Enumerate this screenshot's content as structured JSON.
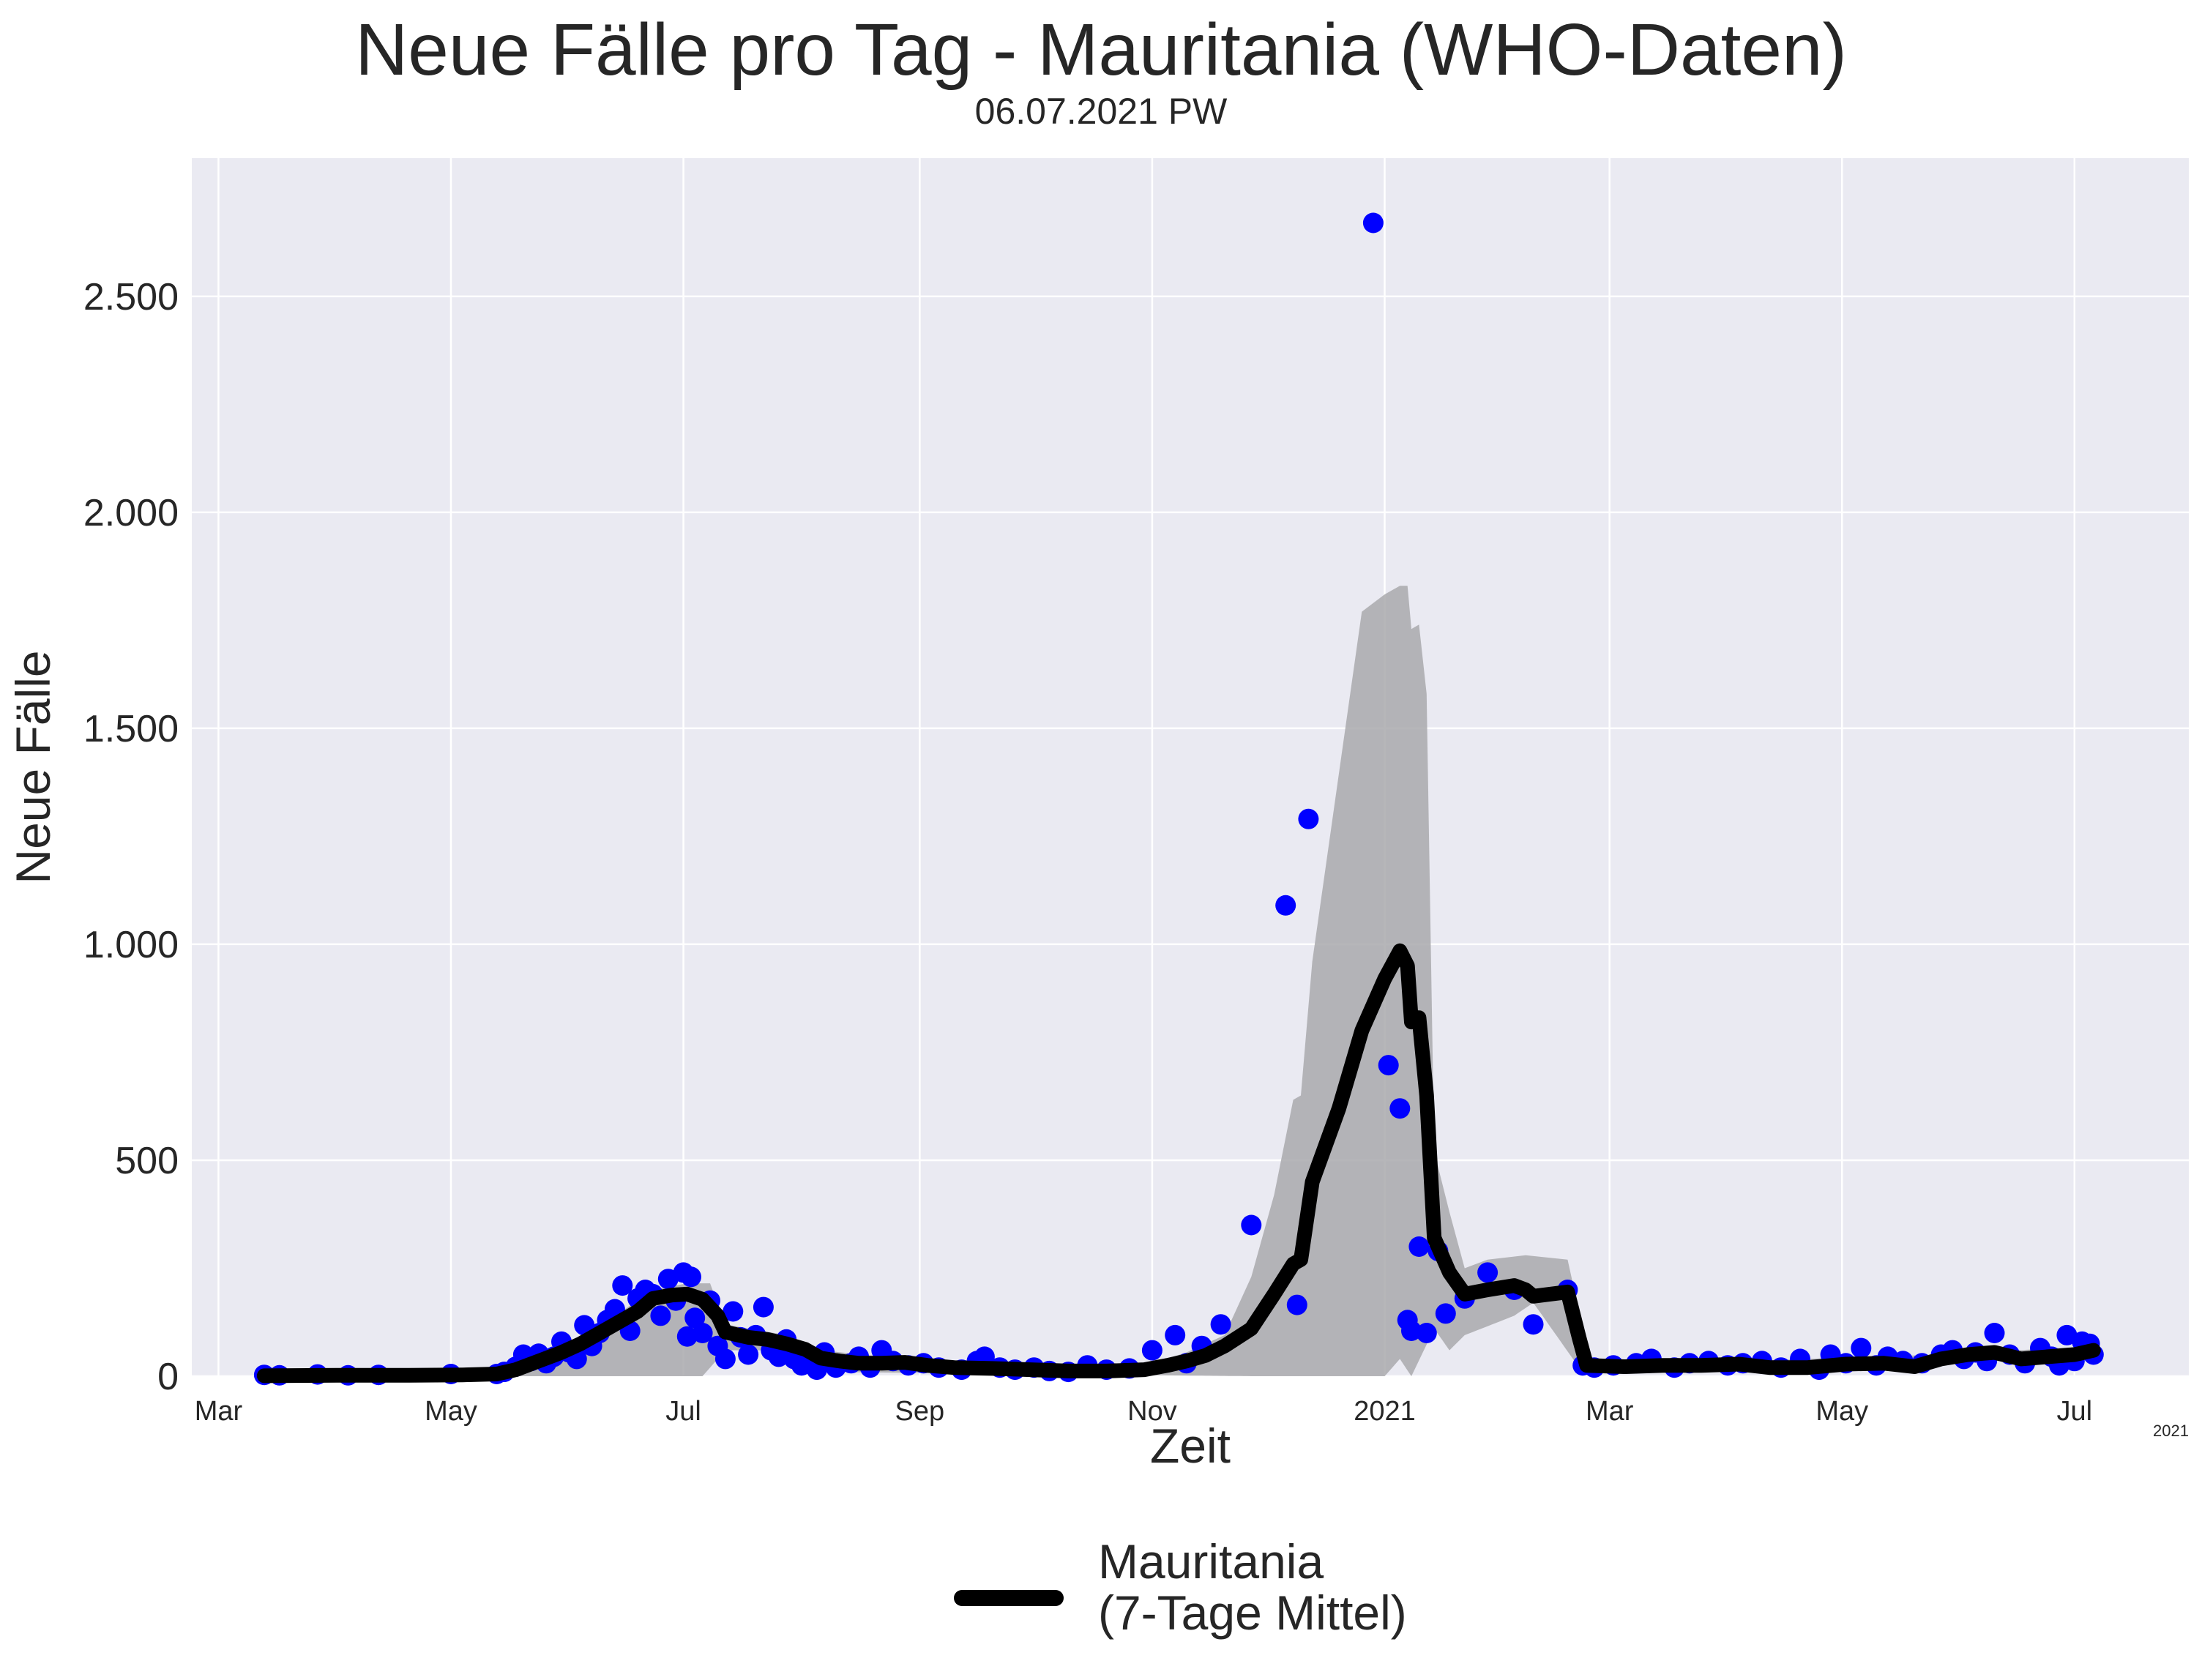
{
  "title": "Neue Fälle pro Tag - Mauritania (WHO-Daten)",
  "subtitle": "06.07.2021 PW",
  "legend": {
    "label_line1": "Mauritania",
    "label_line2": "(7-Tage Mittel)",
    "placement": "bottom-center"
  },
  "colors": {
    "background": "#eaeaf2",
    "grid": "#ffffff",
    "points": "#0000ff",
    "line": "#000000",
    "band": "#a9a9ad"
  },
  "chart_data": {
    "type": "line",
    "title": "Neue Fälle pro Tag - Mauritania (WHO-Daten)",
    "subtitle": "06.07.2021 PW",
    "xlabel": "Zeit",
    "ylabel": "Neue Fälle",
    "xlim": [
      "2020-02-23",
      "2021-07-31"
    ],
    "ylim": [
      0,
      2820
    ],
    "grid": true,
    "x_ticks": [
      {
        "date": "2020-03-01",
        "label": "Mar"
      },
      {
        "date": "2020-05-01",
        "label": "May"
      },
      {
        "date": "2020-07-01",
        "label": "Jul"
      },
      {
        "date": "2020-09-01",
        "label": "Sep"
      },
      {
        "date": "2020-11-01",
        "label": "Nov"
      },
      {
        "date": "2021-01-01",
        "label": "2021"
      },
      {
        "date": "2021-03-01",
        "label": "Mar"
      },
      {
        "date": "2021-05-01",
        "label": "May"
      },
      {
        "date": "2021-07-01",
        "label": "Jul"
      }
    ],
    "x_offset_label": "2021",
    "y_ticks": [
      {
        "value": 0,
        "label": "0"
      },
      {
        "value": 500,
        "label": "500"
      },
      {
        "value": 1000,
        "label": "1.000"
      },
      {
        "value": 1500,
        "label": "1.500"
      },
      {
        "value": 2000,
        "label": "2.000"
      },
      {
        "value": 2500,
        "label": "2.500"
      }
    ],
    "series": [
      {
        "name": "Mauritania (7-Tage Mittel)",
        "kind": "line",
        "points": [
          [
            "2020-03-13",
            1
          ],
          [
            "2020-04-01",
            2
          ],
          [
            "2020-04-20",
            2
          ],
          [
            "2020-05-04",
            3
          ],
          [
            "2020-05-13",
            5
          ],
          [
            "2020-05-18",
            15
          ],
          [
            "2020-05-24",
            35
          ],
          [
            "2020-05-30",
            55
          ],
          [
            "2020-06-04",
            75
          ],
          [
            "2020-06-09",
            100
          ],
          [
            "2020-06-14",
            125
          ],
          [
            "2020-06-19",
            150
          ],
          [
            "2020-06-23",
            180
          ],
          [
            "2020-06-28",
            188
          ],
          [
            "2020-07-02",
            190
          ],
          [
            "2020-07-06",
            178
          ],
          [
            "2020-07-10",
            140
          ],
          [
            "2020-07-12",
            102
          ],
          [
            "2020-07-18",
            90
          ],
          [
            "2020-07-23",
            85
          ],
          [
            "2020-07-28",
            75
          ],
          [
            "2020-08-02",
            62
          ],
          [
            "2020-08-06",
            42
          ],
          [
            "2020-08-11",
            35
          ],
          [
            "2020-08-16",
            30
          ],
          [
            "2020-08-22",
            30
          ],
          [
            "2020-08-28",
            32
          ],
          [
            "2020-09-03",
            25
          ],
          [
            "2020-09-10",
            20
          ],
          [
            "2020-09-20",
            18
          ],
          [
            "2020-09-30",
            15
          ],
          [
            "2020-10-10",
            12
          ],
          [
            "2020-10-20",
            12
          ],
          [
            "2020-10-30",
            15
          ],
          [
            "2020-11-05",
            25
          ],
          [
            "2020-11-10",
            35
          ],
          [
            "2020-11-15",
            48
          ],
          [
            "2020-11-20",
            70
          ],
          [
            "2020-11-27",
            110
          ],
          [
            "2020-12-03",
            190
          ],
          [
            "2020-12-08",
            260
          ],
          [
            "2020-12-10",
            270
          ],
          [
            "2020-12-13",
            450
          ],
          [
            "2020-12-20",
            620
          ],
          [
            "2020-12-26",
            800
          ],
          [
            "2021-01-01",
            920
          ],
          [
            "2021-01-05",
            985
          ],
          [
            "2021-01-07",
            950
          ],
          [
            "2021-01-08",
            820
          ],
          [
            "2021-01-10",
            830
          ],
          [
            "2021-01-12",
            650
          ],
          [
            "2021-01-14",
            320
          ],
          [
            "2021-01-18",
            240
          ],
          [
            "2021-01-22",
            190
          ],
          [
            "2021-01-28",
            200
          ],
          [
            "2021-02-04",
            210
          ],
          [
            "2021-02-07",
            200
          ],
          [
            "2021-02-09",
            185
          ],
          [
            "2021-02-18",
            195
          ],
          [
            "2021-02-21",
            90
          ],
          [
            "2021-02-23",
            25
          ],
          [
            "2021-03-05",
            22
          ],
          [
            "2021-03-15",
            25
          ],
          [
            "2021-03-25",
            25
          ],
          [
            "2021-04-04",
            28
          ],
          [
            "2021-04-12",
            20
          ],
          [
            "2021-04-22",
            20
          ],
          [
            "2021-05-02",
            28
          ],
          [
            "2021-05-12",
            30
          ],
          [
            "2021-05-20",
            22
          ],
          [
            "2021-05-27",
            40
          ],
          [
            "2021-06-03",
            50
          ],
          [
            "2021-06-10",
            55
          ],
          [
            "2021-06-17",
            40
          ],
          [
            "2021-06-24",
            45
          ],
          [
            "2021-07-01",
            50
          ],
          [
            "2021-07-06",
            60
          ]
        ]
      },
      {
        "name": "",
        "kind": "band",
        "upper": [
          [
            "2020-03-13",
            2
          ],
          [
            "2020-05-13",
            6
          ],
          [
            "2020-05-24",
            45
          ],
          [
            "2020-06-09",
            115
          ],
          [
            "2020-06-23",
            200
          ],
          [
            "2020-07-02",
            215
          ],
          [
            "2020-07-08",
            215
          ],
          [
            "2020-07-12",
            120
          ],
          [
            "2020-07-28",
            95
          ],
          [
            "2020-08-06",
            60
          ],
          [
            "2020-09-03",
            35
          ],
          [
            "2020-10-30",
            25
          ],
          [
            "2020-11-10",
            55
          ],
          [
            "2020-11-20",
            95
          ],
          [
            "2020-11-27",
            230
          ],
          [
            "2020-12-03",
            420
          ],
          [
            "2020-12-08",
            640
          ],
          [
            "2020-12-10",
            650
          ],
          [
            "2020-12-13",
            960
          ],
          [
            "2020-12-26",
            1770
          ],
          [
            "2021-01-01",
            1810
          ],
          [
            "2021-01-05",
            1830
          ],
          [
            "2021-01-07",
            1830
          ],
          [
            "2021-01-08",
            1730
          ],
          [
            "2021-01-10",
            1740
          ],
          [
            "2021-01-12",
            1580
          ],
          [
            "2021-01-14",
            520
          ],
          [
            "2021-01-18",
            380
          ],
          [
            "2021-01-22",
            250
          ],
          [
            "2021-01-28",
            270
          ],
          [
            "2021-02-07",
            280
          ],
          [
            "2021-02-18",
            270
          ],
          [
            "2021-02-21",
            150
          ],
          [
            "2021-02-23",
            30
          ],
          [
            "2021-04-04",
            35
          ],
          [
            "2021-05-27",
            50
          ],
          [
            "2021-07-06",
            70
          ]
        ],
        "lower": [
          [
            "2020-07-06",
            0
          ],
          [
            "2020-07-12",
            60
          ],
          [
            "2020-07-23",
            60
          ],
          [
            "2020-08-06",
            10
          ],
          [
            "2020-11-27",
            0
          ],
          [
            "2021-01-01",
            0
          ],
          [
            "2021-01-05",
            40
          ],
          [
            "2021-01-08",
            0
          ],
          [
            "2021-01-14",
            110
          ],
          [
            "2021-01-18",
            60
          ],
          [
            "2021-01-22",
            95
          ],
          [
            "2021-02-04",
            140
          ],
          [
            "2021-02-09",
            170
          ],
          [
            "2021-02-21",
            20
          ],
          [
            "2021-02-23",
            15
          ],
          [
            "2021-07-06",
            40
          ]
        ]
      },
      {
        "name": "",
        "kind": "scatter",
        "points": [
          [
            "2020-03-13",
            3
          ],
          [
            "2020-03-17",
            2
          ],
          [
            "2020-03-27",
            4
          ],
          [
            "2020-04-04",
            2
          ],
          [
            "2020-04-12",
            3
          ],
          [
            "2020-05-01",
            5
          ],
          [
            "2020-05-13",
            5
          ],
          [
            "2020-05-15",
            10
          ],
          [
            "2020-05-18",
            22
          ],
          [
            "2020-05-20",
            50
          ],
          [
            "2020-05-22",
            35
          ],
          [
            "2020-05-24",
            52
          ],
          [
            "2020-05-26",
            30
          ],
          [
            "2020-05-28",
            45
          ],
          [
            "2020-05-30",
            80
          ],
          [
            "2020-06-01",
            55
          ],
          [
            "2020-06-03",
            40
          ],
          [
            "2020-06-05",
            118
          ],
          [
            "2020-06-07",
            70
          ],
          [
            "2020-06-09",
            100
          ],
          [
            "2020-06-11",
            130
          ],
          [
            "2020-06-13",
            155
          ],
          [
            "2020-06-15",
            210
          ],
          [
            "2020-06-17",
            105
          ],
          [
            "2020-06-19",
            180
          ],
          [
            "2020-06-21",
            200
          ],
          [
            "2020-06-23",
            190
          ],
          [
            "2020-06-25",
            140
          ],
          [
            "2020-06-27",
            225
          ],
          [
            "2020-06-29",
            175
          ],
          [
            "2020-07-01",
            240
          ],
          [
            "2020-07-02",
            92
          ],
          [
            "2020-07-03",
            230
          ],
          [
            "2020-07-04",
            135
          ],
          [
            "2020-07-06",
            100
          ],
          [
            "2020-07-08",
            175
          ],
          [
            "2020-07-10",
            70
          ],
          [
            "2020-07-12",
            40
          ],
          [
            "2020-07-14",
            150
          ],
          [
            "2020-07-16",
            90
          ],
          [
            "2020-07-18",
            50
          ],
          [
            "2020-07-20",
            95
          ],
          [
            "2020-07-22",
            160
          ],
          [
            "2020-07-24",
            60
          ],
          [
            "2020-07-26",
            45
          ],
          [
            "2020-07-28",
            85
          ],
          [
            "2020-07-30",
            40
          ],
          [
            "2020-08-01",
            25
          ],
          [
            "2020-08-03",
            30
          ],
          [
            "2020-08-05",
            15
          ],
          [
            "2020-08-07",
            55
          ],
          [
            "2020-08-10",
            20
          ],
          [
            "2020-08-14",
            30
          ],
          [
            "2020-08-16",
            45
          ],
          [
            "2020-08-19",
            20
          ],
          [
            "2020-08-22",
            60
          ],
          [
            "2020-08-25",
            35
          ],
          [
            "2020-08-29",
            25
          ],
          [
            "2020-09-02",
            30
          ],
          [
            "2020-09-06",
            20
          ],
          [
            "2020-09-12",
            15
          ],
          [
            "2020-09-16",
            35
          ],
          [
            "2020-09-18",
            45
          ],
          [
            "2020-09-22",
            20
          ],
          [
            "2020-09-26",
            15
          ],
          [
            "2020-10-01",
            20
          ],
          [
            "2020-10-05",
            12
          ],
          [
            "2020-10-10",
            10
          ],
          [
            "2020-10-15",
            25
          ],
          [
            "2020-10-20",
            15
          ],
          [
            "2020-10-26",
            18
          ],
          [
            "2020-11-01",
            60
          ],
          [
            "2020-11-07",
            95
          ],
          [
            "2020-11-10",
            30
          ],
          [
            "2020-11-14",
            70
          ],
          [
            "2020-11-19",
            120
          ],
          [
            "2020-11-27",
            350
          ],
          [
            "2020-12-06",
            1090
          ],
          [
            "2020-12-09",
            165
          ],
          [
            "2020-12-12",
            1290
          ],
          [
            "2020-12-29",
            2670
          ],
          [
            "2021-01-02",
            720
          ],
          [
            "2021-01-05",
            620
          ],
          [
            "2021-01-07",
            130
          ],
          [
            "2021-01-08",
            105
          ],
          [
            "2021-01-10",
            300
          ],
          [
            "2021-01-12",
            100
          ],
          [
            "2021-01-15",
            290
          ],
          [
            "2021-01-17",
            145
          ],
          [
            "2021-01-22",
            180
          ],
          [
            "2021-01-28",
            240
          ],
          [
            "2021-02-04",
            200
          ],
          [
            "2021-02-09",
            120
          ],
          [
            "2021-02-18",
            200
          ],
          [
            "2021-02-22",
            25
          ],
          [
            "2021-02-25",
            20
          ],
          [
            "2021-03-02",
            25
          ],
          [
            "2021-03-08",
            30
          ],
          [
            "2021-03-12",
            40
          ],
          [
            "2021-03-18",
            20
          ],
          [
            "2021-03-22",
            30
          ],
          [
            "2021-03-27",
            35
          ],
          [
            "2021-04-01",
            25
          ],
          [
            "2021-04-05",
            30
          ],
          [
            "2021-04-10",
            35
          ],
          [
            "2021-04-15",
            20
          ],
          [
            "2021-04-20",
            40
          ],
          [
            "2021-04-25",
            15
          ],
          [
            "2021-04-28",
            50
          ],
          [
            "2021-05-02",
            30
          ],
          [
            "2021-05-06",
            65
          ],
          [
            "2021-05-10",
            25
          ],
          [
            "2021-05-13",
            45
          ],
          [
            "2021-05-17",
            35
          ],
          [
            "2021-05-22",
            30
          ],
          [
            "2021-05-27",
            50
          ],
          [
            "2021-05-30",
            60
          ],
          [
            "2021-06-02",
            40
          ],
          [
            "2021-06-05",
            55
          ],
          [
            "2021-06-08",
            35
          ],
          [
            "2021-06-10",
            100
          ],
          [
            "2021-06-14",
            50
          ],
          [
            "2021-06-18",
            30
          ],
          [
            "2021-06-22",
            65
          ],
          [
            "2021-06-25",
            45
          ],
          [
            "2021-06-27",
            25
          ],
          [
            "2021-06-29",
            95
          ],
          [
            "2021-07-01",
            35
          ],
          [
            "2021-07-03",
            80
          ],
          [
            "2021-07-05",
            75
          ],
          [
            "2021-07-06",
            50
          ]
        ]
      }
    ]
  }
}
